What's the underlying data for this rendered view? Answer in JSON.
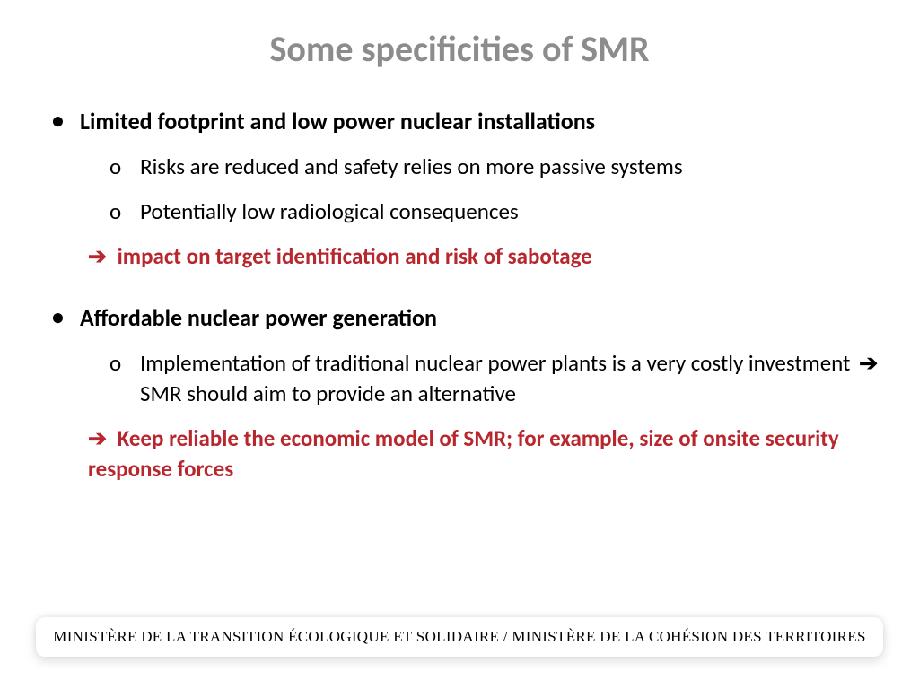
{
  "colors": {
    "title": "#8c8c8c",
    "body": "#000000",
    "emphasis": "#b8272d",
    "background": "#ffffff"
  },
  "title": "Some specificities of SMR",
  "section1": {
    "heading": "Limited footprint and low power nuclear installations",
    "sub1": "Risks are reduced and safety relies on more passive systems",
    "sub2": "Potentially low radiological consequences",
    "arrow_text": "impact on target identification and risk of sabotage"
  },
  "section2": {
    "heading": "Affordable nuclear power generation",
    "sub1_pre": "Implementation of traditional nuclear power plants is a very costly investment",
    "sub1_post": "SMR should aim to provide an alternative",
    "arrow_text": "Keep reliable the economic model of SMR; for example, size of onsite security response forces"
  },
  "footer": "MINISTÈRE DE LA TRANSITION ÉCOLOGIQUE ET SOLIDAIRE / MINISTÈRE DE LA COHÉSION DES TERRITOIRES",
  "glyphs": {
    "bullet": "•",
    "circle": "o",
    "arrow": "➔"
  }
}
